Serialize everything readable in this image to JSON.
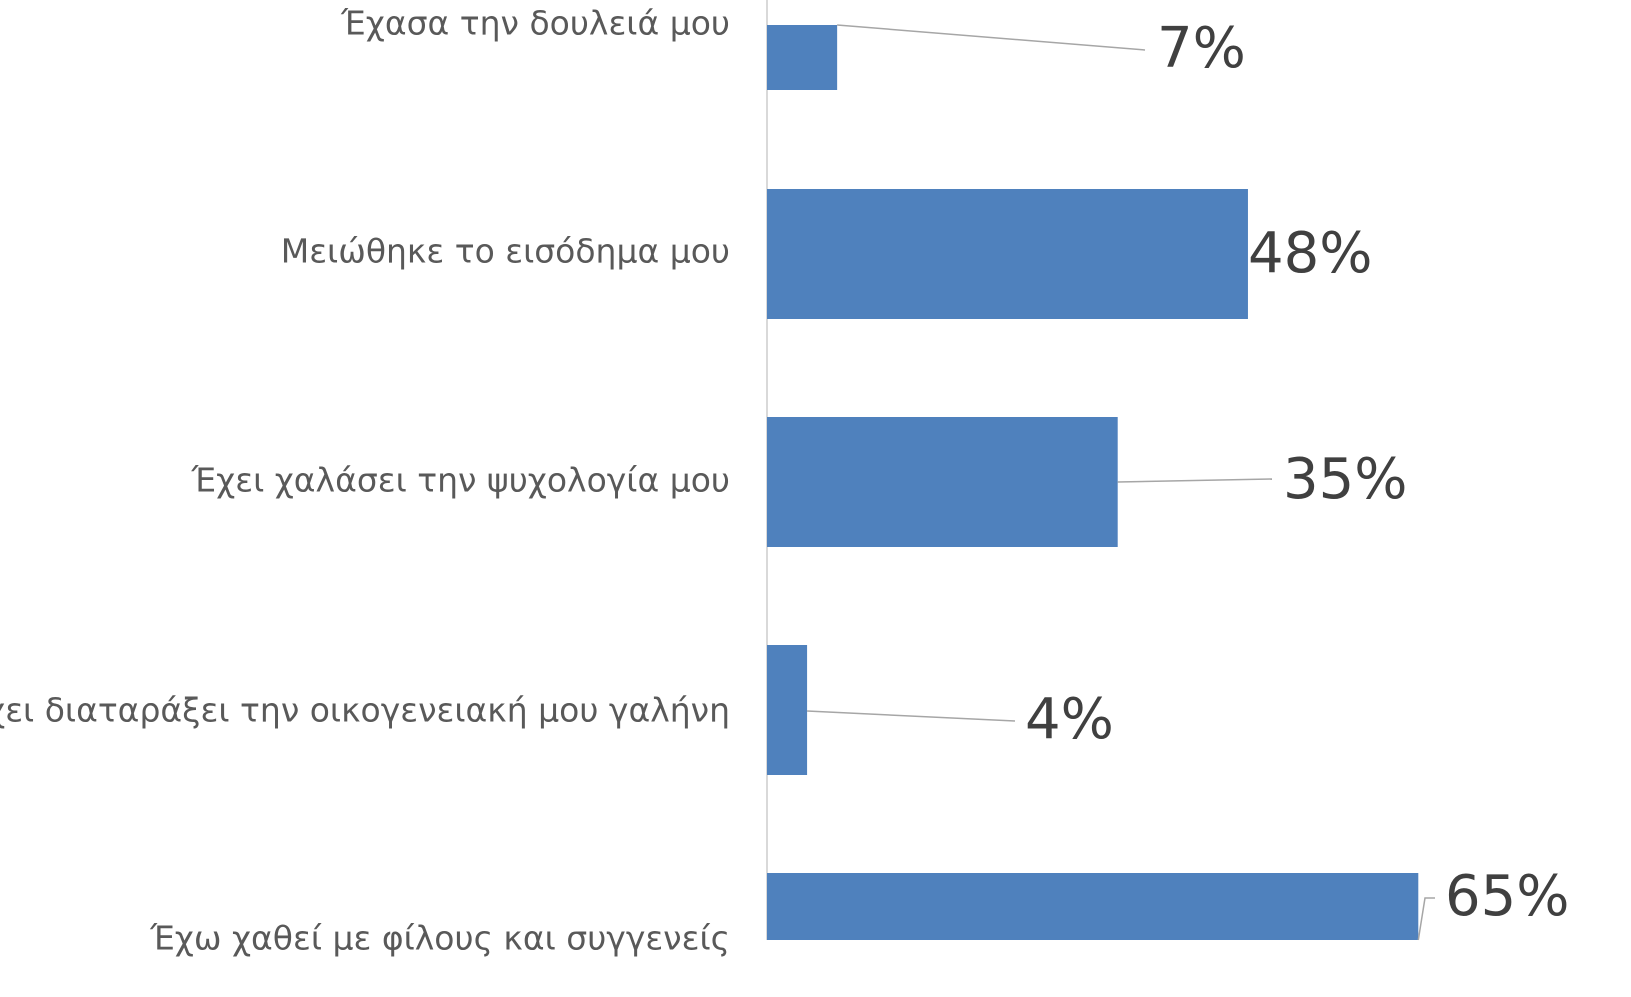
{
  "chart_data": {
    "type": "bar",
    "orientation": "horizontal",
    "categories": [
      "Έχασα την δουλειά μου",
      "Μειώθηκε το εισόδημα μου",
      "Έχει χαλάσει την ψυχολογία μου",
      "Έχει διαταράξει την οικογενειακή μου γαλήνη",
      "Έχω χαθεί με φίλους και συγγενείς"
    ],
    "values": [
      7,
      48,
      35,
      4,
      65
    ],
    "value_labels": [
      "7%",
      "48%",
      "35%",
      "4%",
      "65%"
    ],
    "color": "#4f81bd"
  }
}
